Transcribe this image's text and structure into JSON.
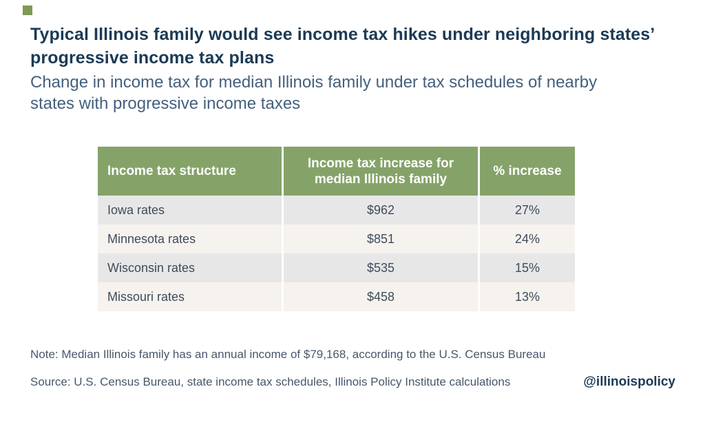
{
  "brand": {
    "square_color": "#7d9a54",
    "handle": "@illinoispolicy"
  },
  "header": {
    "title_line1": "Typical Illinois family would see income tax hikes under neighboring states’",
    "title_line2": "progressive income tax plans",
    "subtitle_line1": "Change in income tax for median Illinois family under tax schedules of nearby",
    "subtitle_line2": "states with progressive income taxes"
  },
  "table": {
    "header_bg": "#85a369",
    "columns": {
      "col1": "Income tax structure",
      "col2": "Income tax increase for median Illinois family",
      "col3": "% increase"
    },
    "rows": [
      {
        "structure": "Iowa rates",
        "increase": "$962",
        "percent": "27%"
      },
      {
        "structure": "Minnesota rates",
        "increase": "$851",
        "percent": "24%"
      },
      {
        "structure": "Wisconsin rates",
        "increase": "$535",
        "percent": "15%"
      },
      {
        "structure": "Missouri rates",
        "increase": "$458",
        "percent": "13%"
      }
    ]
  },
  "footnotes": {
    "note": "Note: Median Illinois family has an annual income of $79,168, according to the U.S. Census Bureau",
    "source": "Source: U.S. Census Bureau, state income tax schedules, Illinois Policy Institute calculations"
  },
  "chart_data": {
    "type": "table",
    "title": "Typical Illinois family would see income tax hikes under neighboring states’ progressive income tax plans",
    "subtitle": "Change in income tax for median Illinois family under tax schedules of nearby states with progressive income taxes",
    "columns": [
      "Income tax structure",
      "Income tax increase for median Illinois family",
      "% increase"
    ],
    "rows": [
      [
        "Iowa rates",
        962,
        27
      ],
      [
        "Minnesota rates",
        851,
        24
      ],
      [
        "Wisconsin rates",
        535,
        15
      ],
      [
        "Missouri rates",
        458,
        13
      ]
    ],
    "note": "Note: Median Illinois family has an annual income of $79,168, according to the U.S. Census Bureau",
    "source": "Source: U.S. Census Bureau, state income tax schedules, Illinois Policy Institute calculations"
  }
}
